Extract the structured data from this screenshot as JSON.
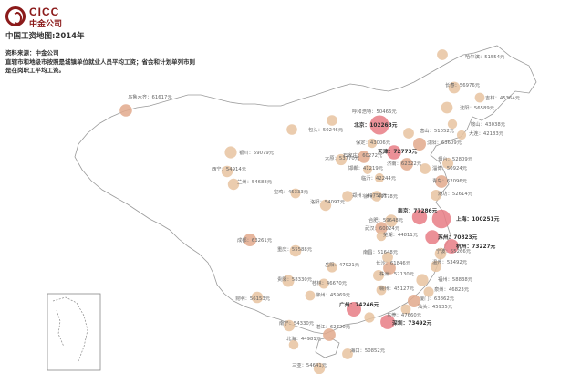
{
  "logo": {
    "en": "CICC",
    "cn": "中金公司"
  },
  "title": "中国工资地图:2014年",
  "source": "资料来源：中金公司",
  "note_line1": "直辖市和地级市按照是城镇单位就业人员平均工资；省会和计划单列市则",
  "note_line2": "是在岗职工平均工资。",
  "colors": {
    "bubble_low": "#e8c3a0",
    "bubble_mid": "#e2a98c",
    "bubble_high": "#e77c85",
    "brand": "#8b1a1a"
  },
  "cities": [
    {
      "label": "哈尔滨：51554元",
      "wage": 51554
    },
    {
      "label": "长春：56976元",
      "wage": 56976
    },
    {
      "label": "吉林：45364元",
      "wage": 45364
    },
    {
      "label": "沈阳：56589元",
      "wage": 56589
    },
    {
      "label": "乌鲁木齐：61617元",
      "wage": 61617
    },
    {
      "label": "呼和浩特：50466元",
      "wage": 50466
    },
    {
      "label": "北京：102268元",
      "wage": 102268
    },
    {
      "label": "鞍山：43038元",
      "wage": 43038
    },
    {
      "label": "大连：42183元",
      "wage": 42183
    },
    {
      "label": "唐山：51052元",
      "wage": 51052
    },
    {
      "label": "沈阳：63609元",
      "wage": 63609
    },
    {
      "label": "包头：50246元",
      "wage": 50246
    },
    {
      "label": "保定：43006元",
      "wage": 43006
    },
    {
      "label": "天津：72773元",
      "wage": 72773
    },
    {
      "label": "银川：59079元",
      "wage": 59079
    },
    {
      "label": "石家庄：60272元",
      "wage": 60272
    },
    {
      "label": "太原：53770元",
      "wage": 53770
    },
    {
      "label": "济南：62322元",
      "wage": 62322
    },
    {
      "label": "烟台：52809元",
      "wage": 52809
    },
    {
      "label": "邯郸：41219元",
      "wage": 41219
    },
    {
      "label": "淄博：50924元",
      "wage": 50924
    },
    {
      "label": "西宁：54914元",
      "wage": 54914
    },
    {
      "label": "临沂：42244元",
      "wage": 42244
    },
    {
      "label": "兰州：54688元",
      "wage": 54688
    },
    {
      "label": "青岛：62096元",
      "wage": 62096
    },
    {
      "label": "徐州：49778元",
      "wage": 49778
    },
    {
      "label": "宝鸡：45333元",
      "wage": 45333
    },
    {
      "label": "洛阳：54097元",
      "wage": 54097
    },
    {
      "label": "郑州：49756元",
      "wage": 49756
    },
    {
      "label": "潍坊：52614元",
      "wage": 52614
    },
    {
      "label": "合肥：59648元",
      "wage": 59648
    },
    {
      "label": "南京：77286元",
      "wage": 77286
    },
    {
      "label": "上海：100251元",
      "wage": 100251
    },
    {
      "label": "成都：63261元",
      "wage": 63261
    },
    {
      "label": "武汉：60024元",
      "wage": 60024
    },
    {
      "label": "苏州：70823元",
      "wage": 70823
    },
    {
      "label": "芜湖：44811元",
      "wage": 44811
    },
    {
      "label": "杭州：73227元",
      "wage": 73227
    },
    {
      "label": "重庆：55588元",
      "wage": 55588
    },
    {
      "label": "宁波：55266元",
      "wage": 55266
    },
    {
      "label": "南昌：51648元",
      "wage": 51648
    },
    {
      "label": "温州：53492元",
      "wage": 53492
    },
    {
      "label": "岳阳：47921元",
      "wage": 47921
    },
    {
      "label": "长沙：61846元",
      "wage": 61846
    },
    {
      "label": "株洲：52130元",
      "wage": 52130
    },
    {
      "label": "贵阳：58330元",
      "wage": 58330
    },
    {
      "label": "福州：58838元",
      "wage": 58838
    },
    {
      "label": "桂林：46670元",
      "wage": 46670
    },
    {
      "label": "泉州：46823元",
      "wage": 46823
    },
    {
      "label": "赣州：45127元",
      "wage": 45127
    },
    {
      "label": "柳州：45969元",
      "wage": 45969
    },
    {
      "label": "厦门：63862元",
      "wage": 63862
    },
    {
      "label": "汕头：45935元",
      "wage": 45935
    },
    {
      "label": "昆明：56153元",
      "wage": 56153
    },
    {
      "label": "广州：74246元",
      "wage": 74246
    },
    {
      "label": "东莞：47660元",
      "wage": 47660
    },
    {
      "label": "深圳：73492元",
      "wage": 73492
    },
    {
      "label": "南宁：54330元",
      "wage": 54330
    },
    {
      "label": "湛江：62720元",
      "wage": 62720
    },
    {
      "label": "北海：44981元",
      "wage": 44981
    },
    {
      "label": "海口：50852元",
      "wage": 50852
    },
    {
      "label": "三亚：54641元",
      "wage": 54641
    }
  ]
}
